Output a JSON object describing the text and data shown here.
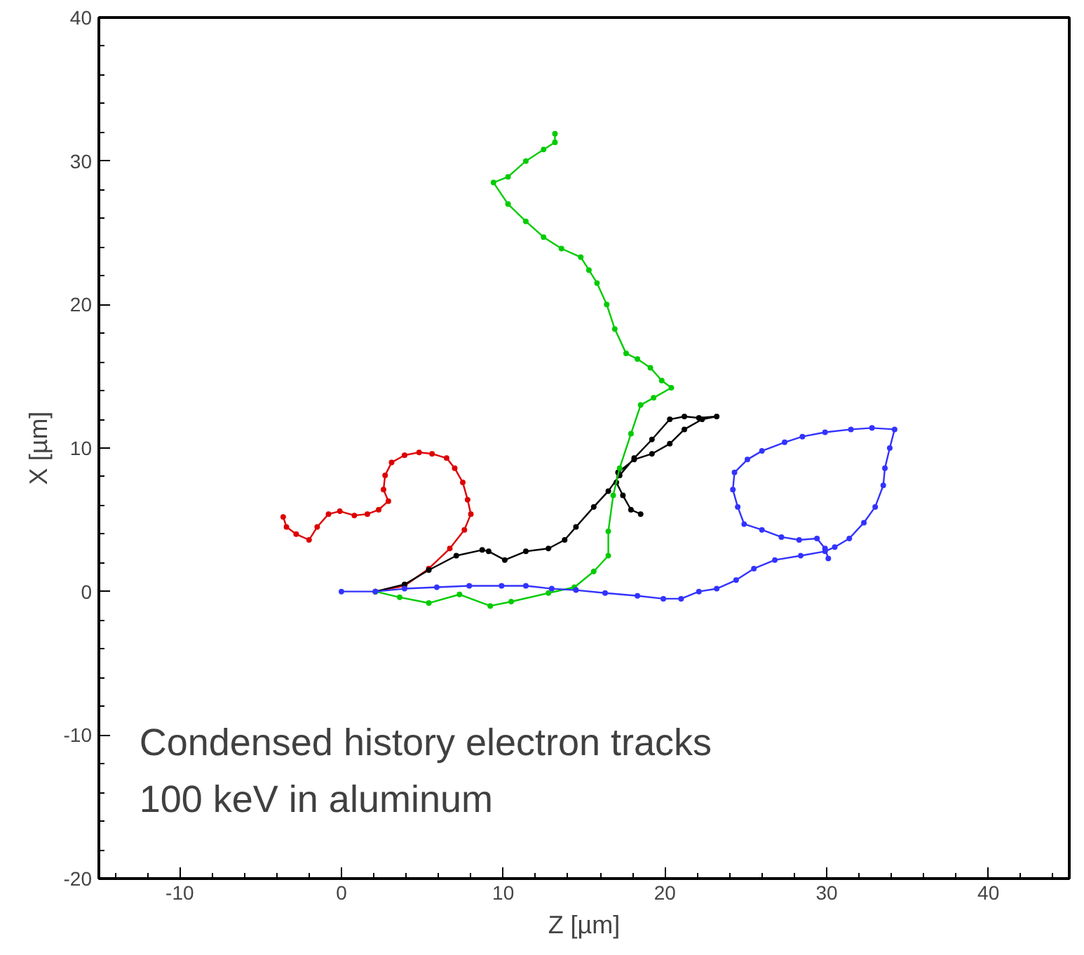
{
  "chart_data": {
    "type": "line",
    "xlabel": "Z [µm]",
    "ylabel": "X [µm]",
    "xlim": [
      -15,
      45
    ],
    "ylim": [
      -20,
      40
    ],
    "xticks": [
      -10,
      0,
      10,
      20,
      30,
      40
    ],
    "yticks": [
      -20,
      -10,
      0,
      10,
      20,
      30,
      40
    ],
    "grid": false,
    "marker": "circle",
    "line_style": "solid",
    "annotations": [
      "Condensed history electron tracks\n100 keV in aluminum"
    ],
    "series": [
      {
        "color": "#dd0000",
        "x": [
          2.1,
          3.9,
          5.4,
          6.7,
          7.6,
          8.0,
          7.8,
          7.5,
          7.0,
          6.5,
          5.6,
          4.8,
          3.9,
          3.1,
          2.7,
          2.6,
          2.9,
          2.3,
          1.6,
          0.8,
          -0.1,
          -0.8,
          -1.5,
          -2.0,
          -2.8,
          -3.4,
          -3.6
        ],
        "values": [
          0,
          0.4,
          1.6,
          3.0,
          4.3,
          5.4,
          6.4,
          7.6,
          8.6,
          9.3,
          9.6,
          9.7,
          9.5,
          9.0,
          8.1,
          7.1,
          6.3,
          5.7,
          5.4,
          5.3,
          5.6,
          5.4,
          4.5,
          3.6,
          4.0,
          4.5,
          5.2
        ]
      },
      {
        "color": "#000000",
        "x": [
          2.1,
          3.9,
          5.4,
          7.1,
          8.7,
          9.1,
          10.1,
          11.4,
          12.8,
          13.8,
          14.5,
          15.6,
          16.5,
          17.2,
          18.1,
          19.2,
          20.3,
          21.2,
          22.1,
          23.2,
          22.3,
          21.2,
          20.3,
          19.2,
          18.1,
          17.1,
          17.0,
          17.4,
          17.9,
          18.5
        ],
        "values": [
          0,
          0.5,
          1.5,
          2.5,
          2.9,
          2.8,
          2.2,
          2.8,
          3.0,
          3.6,
          4.5,
          5.9,
          7.0,
          8.1,
          9.3,
          10.6,
          12.0,
          12.2,
          12.1,
          12.2,
          12.0,
          11.3,
          10.3,
          9.6,
          9.2,
          8.3,
          7.6,
          6.7,
          5.7,
          5.4
        ]
      },
      {
        "color": "#00cc00",
        "x": [
          2.1,
          3.6,
          5.4,
          7.3,
          9.2,
          10.5,
          12.8,
          14.4,
          15.6,
          16.5,
          16.5,
          16.8,
          17.2,
          17.9,
          18.5,
          19.3,
          20.4,
          19.8,
          19.1,
          18.3,
          17.6,
          16.9,
          16.4,
          15.8,
          15.3,
          14.8,
          13.6,
          12.5,
          11.4,
          10.3,
          9.4,
          10.3,
          11.4,
          12.5,
          13.2,
          13.2
        ],
        "values": [
          0,
          -0.4,
          -0.8,
          -0.2,
          -1.0,
          -0.7,
          -0.1,
          0.3,
          1.4,
          2.5,
          4.2,
          6.7,
          8.6,
          11.0,
          13.0,
          13.5,
          14.2,
          14.7,
          15.6,
          16.2,
          16.6,
          18.3,
          20.0,
          21.5,
          22.4,
          23.3,
          23.9,
          24.7,
          25.8,
          27.0,
          28.5,
          28.9,
          30.0,
          30.8,
          31.3,
          31.9
        ]
      },
      {
        "color": "#3333ff",
        "x": [
          0,
          2.1,
          3.9,
          5.9,
          7.9,
          9.9,
          11.4,
          13.0,
          14.5,
          16.3,
          18.3,
          19.9,
          21.0,
          22.1,
          23.2,
          24.4,
          25.5,
          26.8,
          28.4,
          29.9,
          30.5,
          31.4,
          32.3,
          33.0,
          33.5,
          33.6,
          33.9,
          34.2,
          32.8,
          31.5,
          29.9,
          28.5,
          27.4,
          26.0,
          25.1,
          24.3,
          24.2,
          24.5,
          24.9,
          26.0,
          27.2,
          28.3,
          29.4,
          29.9,
          30.1
        ],
        "values": [
          0,
          0,
          0.2,
          0.3,
          0.4,
          0.4,
          0.4,
          0.2,
          0.1,
          -0.1,
          -0.3,
          -0.5,
          -0.5,
          0,
          0.2,
          0.8,
          1.6,
          2.2,
          2.5,
          2.8,
          3.1,
          3.7,
          4.8,
          5.9,
          7.4,
          8.6,
          10.0,
          11.3,
          11.4,
          11.3,
          11.1,
          10.8,
          10.4,
          9.8,
          9.2,
          8.3,
          7.1,
          5.9,
          4.7,
          4.3,
          3.8,
          3.6,
          3.7,
          3.0,
          2.3
        ]
      }
    ]
  }
}
